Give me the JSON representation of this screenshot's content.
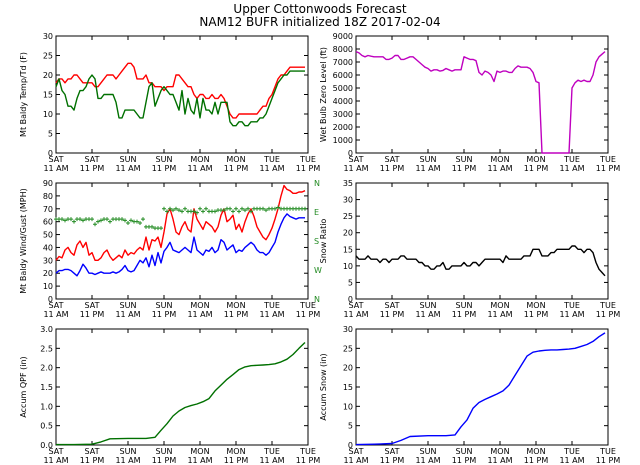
{
  "title": "Upper Cottonwoods Forecast",
  "subtitle": "NAM12 BUFR initialized 18Z 2017-02-04",
  "x_tick_labels": [
    [
      "SAT",
      "11 AM"
    ],
    [
      "SAT",
      "11 PM"
    ],
    [
      "SUN",
      "11 AM"
    ],
    [
      "SUN",
      "11 PM"
    ],
    [
      "MON",
      "11 AM"
    ],
    [
      "MON",
      "11 PM"
    ],
    [
      "TUE",
      "11 AM"
    ],
    [
      "TUE",
      "11 PM"
    ]
  ],
  "colors": {
    "temp": "#ff0000",
    "dewpoint": "#007000",
    "wetbulb": "#bf00bf",
    "wind": "#0000ff",
    "gust": "#ff0000",
    "dir": "#228B22",
    "ratio": "#000000",
    "qpf": "#007000",
    "snow": "#0000ff"
  },
  "chart_data": [
    {
      "type": "line",
      "panel": "temp",
      "title": "",
      "xlabel": "",
      "ylabel": "Mt Baldy Temp/Td (F)",
      "ylim": [
        0,
        30
      ],
      "yticks": [
        "0",
        "5",
        "10",
        "15",
        "20",
        "25",
        "30"
      ],
      "x": [
        0,
        1,
        2,
        3,
        4,
        5,
        6,
        7,
        8,
        9,
        10,
        11,
        12,
        13,
        14,
        15,
        16,
        17,
        18,
        19,
        20,
        21,
        22,
        23,
        24,
        25,
        26,
        27,
        28,
        29,
        30,
        31,
        32,
        33,
        34,
        35,
        36,
        37,
        38,
        39,
        40,
        41,
        42,
        43,
        44,
        45,
        46,
        47,
        48,
        49,
        50,
        51,
        52,
        53,
        54,
        55,
        56,
        57,
        58,
        59,
        60,
        61,
        62,
        63,
        64,
        65,
        66,
        67,
        68,
        69,
        70,
        71,
        72,
        73,
        74,
        75,
        76,
        77,
        78,
        79,
        80,
        81,
        82,
        83
      ],
      "series": [
        {
          "name": "Temp",
          "color": "#ff0000",
          "values": [
            18,
            19,
            19,
            18,
            19,
            19,
            20,
            20,
            19,
            18,
            18,
            18,
            18,
            17,
            17,
            18,
            19,
            20,
            20,
            20,
            19,
            20,
            21,
            22,
            23,
            23,
            22,
            19,
            19,
            19,
            20,
            18,
            18,
            17,
            17,
            17,
            16,
            17,
            17,
            17,
            20,
            20,
            19,
            18,
            17,
            17,
            15,
            14,
            15,
            15,
            14,
            14,
            15,
            14,
            14,
            15,
            14,
            12,
            10,
            9,
            9,
            10,
            10,
            10,
            10,
            10,
            10,
            10,
            11,
            12,
            12,
            14,
            15,
            17,
            19,
            20,
            20,
            21,
            22,
            22,
            22,
            22,
            22,
            22
          ]
        },
        {
          "name": "Td",
          "color": "#007000",
          "values": [
            17,
            19,
            16,
            15,
            12,
            12,
            11,
            14,
            16,
            16,
            17,
            19,
            20,
            19,
            14,
            14,
            15,
            15,
            15,
            15,
            13,
            9,
            9,
            11,
            11,
            11,
            11,
            10,
            9,
            9,
            13,
            17,
            18,
            12,
            14,
            16,
            17,
            16,
            15,
            15,
            13,
            11,
            16,
            10,
            14,
            11,
            10,
            14,
            9,
            14,
            11,
            11,
            10,
            13,
            10,
            13,
            13,
            13,
            8,
            7,
            7,
            8,
            8,
            7,
            7,
            8,
            8,
            8,
            9,
            9,
            10,
            12,
            14,
            16,
            18,
            19,
            20,
            20,
            21,
            21,
            21,
            21,
            21,
            21
          ]
        }
      ]
    },
    {
      "type": "line",
      "panel": "wetbulb",
      "title": "",
      "xlabel": "",
      "ylabel": "Wet Bulb Zero Level (ft)",
      "ylim": [
        0,
        9000
      ],
      "yticks": [
        "0",
        "1000",
        "2000",
        "3000",
        "4000",
        "5000",
        "6000",
        "7000",
        "8000",
        "9000"
      ],
      "x": [
        0,
        1,
        2,
        3,
        4,
        5,
        6,
        7,
        8,
        9,
        10,
        11,
        12,
        13,
        14,
        15,
        16,
        17,
        18,
        19,
        20,
        21,
        22,
        23,
        24,
        25,
        26,
        27,
        28,
        29,
        30,
        31,
        32,
        33,
        34,
        35,
        36,
        37,
        38,
        39,
        40,
        41,
        42,
        43,
        44,
        45,
        46,
        47,
        48,
        49,
        50,
        51,
        52,
        53,
        54,
        55,
        56,
        57,
        58,
        59,
        60,
        61,
        62,
        63,
        64,
        65,
        66,
        67,
        68,
        69,
        70,
        71,
        72,
        73,
        74,
        75,
        76,
        77,
        78,
        79,
        80,
        81,
        82,
        83
      ],
      "series": [
        {
          "name": "Wet Bulb Zero",
          "color": "#bf00bf",
          "values": [
            7800,
            7700,
            7500,
            7400,
            7500,
            7450,
            7400,
            7400,
            7400,
            7400,
            7200,
            7200,
            7300,
            7500,
            7500,
            7200,
            7200,
            7300,
            7400,
            7400,
            7200,
            7000,
            6800,
            6600,
            6500,
            6300,
            6400,
            6400,
            6300,
            6350,
            6500,
            6400,
            6300,
            6400,
            6400,
            6400,
            7400,
            7300,
            7200,
            7200,
            7100,
            6200,
            6000,
            6300,
            6200,
            6000,
            5500,
            6300,
            6200,
            6300,
            6300,
            6200,
            6200,
            6500,
            6700,
            6600,
            6600,
            6600,
            6500,
            6200,
            5500,
            5400,
            0,
            0,
            0,
            0,
            0,
            0,
            0,
            0,
            0,
            0,
            5000,
            5400,
            5600,
            5500,
            5600,
            5500,
            5500,
            6000,
            7000,
            7400,
            7600,
            7800
          ]
        }
      ]
    },
    {
      "type": "line",
      "panel": "wind",
      "title": "",
      "xlabel": "",
      "ylabel": "Mt Baldy Wind/Gust (MPH)",
      "ylim": [
        0,
        90
      ],
      "yticks": [
        "0",
        "10",
        "20",
        "30",
        "40",
        "50",
        "60",
        "70",
        "80",
        "90"
      ],
      "right_ticks": [
        "N",
        "W",
        "S",
        "E",
        "N"
      ],
      "x": [
        0,
        1,
        2,
        3,
        4,
        5,
        6,
        7,
        8,
        9,
        10,
        11,
        12,
        13,
        14,
        15,
        16,
        17,
        18,
        19,
        20,
        21,
        22,
        23,
        24,
        25,
        26,
        27,
        28,
        29,
        30,
        31,
        32,
        33,
        34,
        35,
        36,
        37,
        38,
        39,
        40,
        41,
        42,
        43,
        44,
        45,
        46,
        47,
        48,
        49,
        50,
        51,
        52,
        53,
        54,
        55,
        56,
        57,
        58,
        59,
        60,
        61,
        62,
        63,
        64,
        65,
        66,
        67,
        68,
        69,
        70,
        71,
        72,
        73,
        74,
        75,
        76,
        77,
        78,
        79,
        80,
        81,
        82,
        83
      ],
      "series": [
        {
          "name": "Wind",
          "color": "#0000ff",
          "values": [
            20,
            22,
            22,
            23,
            23,
            22,
            20,
            18,
            22,
            27,
            24,
            20,
            20,
            19,
            20,
            21,
            20,
            20,
            20,
            21,
            20,
            21,
            23,
            26,
            22,
            21,
            22,
            26,
            30,
            28,
            32,
            25,
            34,
            26,
            36,
            28,
            37,
            40,
            44,
            38,
            37,
            36,
            38,
            40,
            38,
            36,
            48,
            38,
            36,
            34,
            38,
            37,
            40,
            36,
            38,
            46,
            44,
            38,
            40,
            42,
            36,
            38,
            37,
            40,
            42,
            44,
            42,
            38,
            36,
            36,
            34,
            36,
            40,
            44,
            52,
            58,
            63,
            66,
            64,
            63,
            62,
            63,
            63,
            63
          ]
        },
        {
          "name": "Gust",
          "color": "#ff0000",
          "values": [
            30,
            33,
            32,
            38,
            40,
            36,
            34,
            42,
            45,
            40,
            44,
            34,
            36,
            30,
            30,
            32,
            36,
            38,
            33,
            30,
            32,
            34,
            32,
            38,
            34,
            36,
            35,
            38,
            40,
            38,
            48,
            38,
            46,
            45,
            48,
            40,
            52,
            66,
            70,
            62,
            52,
            50,
            56,
            60,
            54,
            52,
            70,
            62,
            58,
            54,
            60,
            58,
            56,
            52,
            56,
            65,
            70,
            60,
            62,
            65,
            54,
            58,
            52,
            60,
            66,
            70,
            64,
            56,
            52,
            48,
            46,
            50,
            55,
            62,
            70,
            80,
            88,
            85,
            84,
            82,
            82,
            83,
            83,
            84
          ]
        },
        {
          "name": "Dir",
          "color": "#228B22",
          "axis": "right",
          "values": [
            62,
            62,
            62,
            61,
            62,
            62,
            60,
            62,
            62,
            61,
            62,
            62,
            62,
            58,
            60,
            61,
            62,
            62,
            60,
            62,
            62,
            62,
            62,
            61,
            59,
            61,
            60,
            60,
            59,
            62,
            56,
            56,
            56,
            55,
            55,
            55,
            70,
            68,
            70,
            69,
            70,
            69,
            68,
            70,
            68,
            68,
            68,
            67,
            70,
            68,
            70,
            68,
            68,
            68,
            69,
            69,
            69,
            70,
            70,
            68,
            70,
            68,
            70,
            69,
            70,
            68,
            70,
            70,
            70,
            70,
            69,
            70,
            70,
            70,
            71,
            70,
            70,
            70,
            70,
            70,
            70,
            70,
            70,
            70
          ]
        }
      ]
    },
    {
      "type": "line",
      "panel": "ratio",
      "title": "",
      "xlabel": "",
      "ylabel": "Snow Ratio",
      "ylim": [
        0,
        35
      ],
      "yticks": [
        "0",
        "5",
        "10",
        "15",
        "20",
        "25",
        "30",
        "35"
      ],
      "x": [
        0,
        1,
        2,
        3,
        4,
        5,
        6,
        7,
        8,
        9,
        10,
        11,
        12,
        13,
        14,
        15,
        16,
        17,
        18,
        19,
        20,
        21,
        22,
        23,
        24,
        25,
        26,
        27,
        28,
        29,
        30,
        31,
        32,
        33,
        34,
        35,
        36,
        37,
        38,
        39,
        40,
        41,
        42,
        43,
        44,
        45,
        46,
        47,
        48,
        49,
        50,
        51,
        52,
        53,
        54,
        55,
        56,
        57,
        58,
        59,
        60,
        61,
        62,
        63,
        64,
        65,
        66,
        67,
        68,
        69,
        70,
        71,
        72,
        73,
        74,
        75,
        76,
        77,
        78,
        79,
        80,
        81,
        82,
        83
      ],
      "series": [
        {
          "name": "Snow Ratio",
          "color": "#000000",
          "values": [
            13,
            12,
            12,
            12,
            13,
            12,
            12,
            12,
            11,
            12,
            12,
            11,
            12,
            12,
            12,
            13,
            13,
            12,
            12,
            12,
            12,
            11,
            11,
            10,
            10,
            9,
            9,
            10,
            10,
            11,
            9,
            9,
            10,
            10,
            10,
            10,
            11,
            10,
            10,
            11,
            11,
            10,
            11,
            12,
            12,
            12,
            12,
            12,
            12,
            11,
            13,
            12,
            12,
            12,
            12,
            12,
            13,
            13,
            13,
            15,
            15,
            15,
            13,
            13,
            13,
            14,
            14,
            15,
            15,
            15,
            15,
            15,
            16,
            16,
            15,
            15,
            14,
            15,
            15,
            14,
            11,
            9,
            8,
            7
          ]
        }
      ]
    },
    {
      "type": "line",
      "panel": "qpf",
      "title": "",
      "xlabel": "",
      "ylabel": "Accum QPF (in)",
      "ylim": [
        0,
        3.0
      ],
      "yticks": [
        "0.0",
        "0.5",
        "1.0",
        "1.5",
        "2.0",
        "2.5",
        "3.0"
      ],
      "x": [
        0,
        6,
        12,
        15,
        18,
        24,
        30,
        33,
        35,
        37,
        39,
        41,
        43,
        45,
        47,
        49,
        51,
        53,
        55,
        57,
        59,
        61,
        63,
        65,
        67,
        69,
        71,
        73,
        75,
        77,
        79,
        81,
        83
      ],
      "series": [
        {
          "name": "Accum QPF",
          "color": "#007000",
          "values": [
            0.01,
            0.01,
            0.02,
            0.08,
            0.16,
            0.17,
            0.17,
            0.2,
            0.38,
            0.55,
            0.75,
            0.88,
            0.97,
            1.02,
            1.06,
            1.12,
            1.2,
            1.4,
            1.55,
            1.7,
            1.82,
            1.95,
            2.02,
            2.05,
            2.06,
            2.07,
            2.08,
            2.1,
            2.15,
            2.22,
            2.34,
            2.5,
            2.65
          ]
        }
      ]
    },
    {
      "type": "line",
      "panel": "snow",
      "title": "",
      "xlabel": "",
      "ylabel": "Accum Snow (in)",
      "ylim": [
        0,
        30
      ],
      "yticks": [
        "0",
        "5",
        "10",
        "15",
        "20",
        "25",
        "30"
      ],
      "x": [
        0,
        6,
        12,
        15,
        18,
        24,
        30,
        33,
        35,
        37,
        39,
        41,
        43,
        45,
        47,
        49,
        51,
        53,
        55,
        57,
        59,
        61,
        63,
        65,
        67,
        69,
        71,
        73,
        75,
        77,
        79,
        81,
        83
      ],
      "series": [
        {
          "name": "Accum Snow",
          "color": "#0000ff",
          "values": [
            0.1,
            0.2,
            0.4,
            1.2,
            2.2,
            2.4,
            2.4,
            2.6,
            4.7,
            6.5,
            9.5,
            11.0,
            11.8,
            12.5,
            13.2,
            14.0,
            15.5,
            18.0,
            20.5,
            23.0,
            24.0,
            24.3,
            24.5,
            24.6,
            24.6,
            24.7,
            24.8,
            25.0,
            25.5,
            26.0,
            26.8,
            28.0,
            29.0
          ]
        }
      ]
    }
  ]
}
